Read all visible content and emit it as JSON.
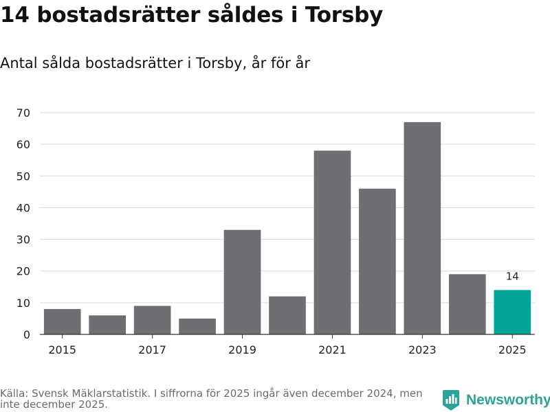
{
  "header": {
    "title": "14 bostadsrätter såldes i Torsby",
    "subtitle": "Antal sålda bostadsrätter i Torsby, år för år"
  },
  "chart_data": {
    "type": "bar",
    "categories": [
      "2015",
      "2016",
      "2017",
      "2018",
      "2019",
      "2020",
      "2021",
      "2022",
      "2023",
      "2024",
      "2025"
    ],
    "values": [
      8,
      6,
      9,
      5,
      33,
      12,
      58,
      46,
      67,
      19,
      14
    ],
    "x_tick_labels": [
      "2015",
      "2017",
      "2019",
      "2021",
      "2023",
      "2025"
    ],
    "y_ticks": [
      0,
      10,
      20,
      30,
      40,
      50,
      60,
      70
    ],
    "ylim": [
      0,
      70
    ],
    "grid": true,
    "highlight_index": 10,
    "highlight_label": "14",
    "colors": {
      "bar": "#6f6e73",
      "highlight": "#00a497",
      "grid": "#d9d9d9",
      "axis": "#333333",
      "tick_text": "#222222"
    }
  },
  "footer": {
    "source": "Källa: Svensk Mäklarstatistik. I siffrorna för 2025 ingår även december 2024, men inte december 2025.",
    "brand_name": "Newsworthy",
    "brand_icon": "newsworthy-logo-icon",
    "brand_color": "#2ba396"
  }
}
